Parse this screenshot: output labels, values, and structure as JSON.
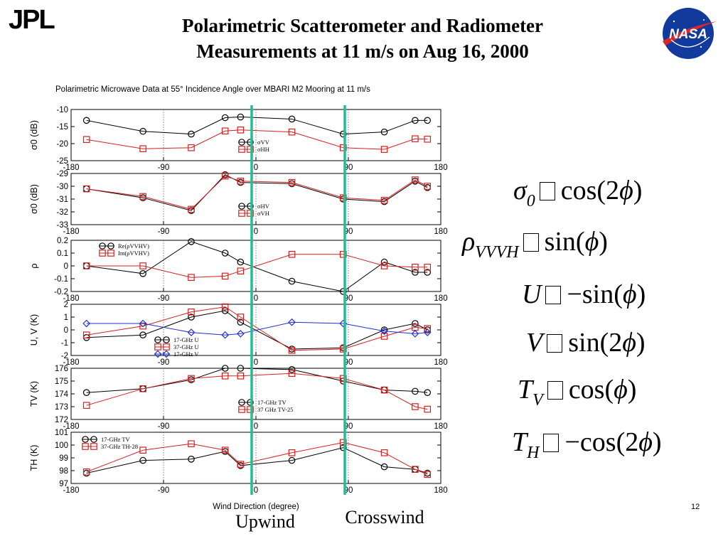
{
  "slide": {
    "title_line1": "Polarimetric Scatterometer and Radiometer",
    "title_line2": "Measurements at 11 m/s on Aug 16, 2000",
    "logo_left": "JPL",
    "logo_right": "NASA",
    "slide_number": "12",
    "annotation_upwind": "Upwind",
    "annotation_crosswind": "Crosswind"
  },
  "equations": [
    {
      "lhs": "σ",
      "sub": "0",
      "rhs": "cos(2",
      "var": "ϕ",
      "close": ")"
    },
    {
      "lhs": "ρ",
      "sub": "VVVH",
      "rhs": "sin(",
      "var": "ϕ",
      "close": ")"
    },
    {
      "lhs": "U",
      "sub": "",
      "rhs": "−sin(",
      "var": "ϕ",
      "close": ")"
    },
    {
      "lhs": "V",
      "sub": "",
      "rhs": "sin(2",
      "var": "ϕ",
      "close": ")"
    },
    {
      "lhs": "T",
      "sub": "V",
      "rhs": "cos(",
      "var": "ϕ",
      "close": ")"
    },
    {
      "lhs": "T",
      "sub": "H",
      "rhs": "−cos(2",
      "var": "ϕ",
      "close": ")"
    }
  ],
  "chart_data": {
    "type": "line",
    "title": "Polarimetric Microwave Data at 55° Incidence Angle over MBARI M2 Mooring at 11 m/s",
    "xlabel": "Wind Direction (degree)",
    "xlim": [
      -180,
      180
    ],
    "xticks": [
      -180,
      -90,
      0,
      90,
      180
    ],
    "x": [
      -165,
      -110,
      -63,
      -30,
      -15,
      35,
      85,
      125,
      155,
      167
    ],
    "vlines": [
      {
        "x": 0,
        "label": "Upwind"
      },
      {
        "x": 90,
        "label": "Crosswind"
      }
    ],
    "colors": {
      "black": "#000000",
      "red": "#d62020",
      "blue": "#2030d0",
      "marker_line": "#1fbf96"
    },
    "panels": [
      {
        "ylabel": "σ0 (dB)",
        "ylim": [
          -25,
          -10
        ],
        "yticks": [
          -25,
          -20,
          -15,
          -10
        ],
        "legend": [
          "σVV",
          "σHH"
        ],
        "series": [
          {
            "name": "σVV",
            "color": "#000000",
            "marker": "circle",
            "values": [
              -13.2,
              -16.4,
              -17.2,
              -12.4,
              -12.2,
              -12.8,
              -17.2,
              -16.6,
              -13.2,
              -13.2
            ]
          },
          {
            "name": "σHH",
            "color": "#d62020",
            "marker": "square",
            "values": [
              -18.8,
              -21.5,
              -21.2,
              -16.3,
              -16.0,
              -16.6,
              -21.2,
              -21.7,
              -18.6,
              -18.7
            ]
          }
        ]
      },
      {
        "ylabel": "σ0 (dB)",
        "ylim": [
          -33,
          -29
        ],
        "yticks": [
          -33,
          -32,
          -31,
          -30,
          -29
        ],
        "legend": [
          "σHV",
          "σVH"
        ],
        "series": [
          {
            "name": "σHV",
            "color": "#000000",
            "marker": "circle",
            "values": [
              -30.2,
              -30.9,
              -31.9,
              -29.1,
              -29.7,
              -29.8,
              -31.0,
              -31.2,
              -29.6,
              -30.1
            ]
          },
          {
            "name": "σVH",
            "color": "#d62020",
            "marker": "square",
            "values": [
              -30.2,
              -30.8,
              -31.8,
              -29.2,
              -29.6,
              -29.7,
              -30.9,
              -31.1,
              -29.5,
              -30.0
            ]
          }
        ]
      },
      {
        "ylabel": "ρ",
        "ylim": [
          -0.2,
          0.2
        ],
        "yticks": [
          -0.2,
          -0.1,
          0,
          0.1,
          0.2
        ],
        "legend": [
          "Re(ρVVHV)",
          "Im(ρVVHV)"
        ],
        "series": [
          {
            "name": "Re(ρVVHV)",
            "color": "#000000",
            "marker": "circle",
            "values": [
              0.0,
              -0.06,
              0.19,
              0.1,
              0.03,
              -0.12,
              -0.2,
              0.03,
              -0.05,
              -0.05
            ]
          },
          {
            "name": "Im(ρVVHV)",
            "color": "#d62020",
            "marker": "square",
            "values": [
              0.0,
              0.0,
              -0.09,
              -0.08,
              -0.04,
              0.09,
              0.09,
              0.0,
              -0.01,
              -0.01
            ]
          }
        ]
      },
      {
        "ylabel": "U, V (K)",
        "ylim": [
          -2,
          2
        ],
        "yticks": [
          -2,
          -1,
          0,
          1,
          2
        ],
        "legend": [
          "17-GHz U",
          "37-GHz U",
          "17-GHz V"
        ],
        "series": [
          {
            "name": "17-GHz U",
            "color": "#000000",
            "marker": "circle",
            "values": [
              -0.6,
              -0.4,
              1.0,
              1.5,
              0.6,
              -1.5,
              -1.4,
              0.0,
              0.5,
              0.0
            ]
          },
          {
            "name": "37-GHz U",
            "color": "#d62020",
            "marker": "square",
            "values": [
              -0.4,
              0.3,
              1.4,
              1.8,
              1.0,
              -1.6,
              -1.5,
              -0.5,
              0.2,
              0.1
            ]
          },
          {
            "name": "17-GHz V",
            "color": "#2030d0",
            "marker": "diamond",
            "values": [
              0.5,
              0.5,
              -0.2,
              -0.4,
              -0.3,
              0.6,
              0.5,
              -0.1,
              -0.3,
              -0.2
            ]
          }
        ]
      },
      {
        "ylabel": "TV (K)",
        "ylim": [
          172,
          176
        ],
        "yticks": [
          172,
          173,
          174,
          175,
          176
        ],
        "legend": [
          "17-GHz TV",
          "37 GHz TV-25"
        ],
        "series": [
          {
            "name": "17-GHz TV",
            "color": "#000000",
            "marker": "circle",
            "values": [
              174.1,
              174.4,
              175.1,
              176.0,
              176.0,
              175.9,
              175.0,
              174.3,
              174.2,
              174.1
            ]
          },
          {
            "name": "37 GHz TV-25",
            "color": "#d62020",
            "marker": "square",
            "values": [
              173.1,
              174.4,
              175.2,
              175.4,
              175.4,
              175.6,
              175.2,
              174.3,
              173.0,
              172.8
            ]
          }
        ]
      },
      {
        "ylabel": "TH (K)",
        "ylim": [
          97,
          101
        ],
        "yticks": [
          97,
          98,
          99,
          100,
          101
        ],
        "legend": [
          "17-GHz TV",
          "37-GHz TH-28"
        ],
        "series": [
          {
            "name": "17-GHz TV",
            "color": "#000000",
            "marker": "circle",
            "values": [
              97.8,
              98.8,
              98.9,
              99.5,
              98.4,
              98.8,
              99.8,
              98.3,
              98.1,
              97.8
            ]
          },
          {
            "name": "37-GHz TH-28",
            "color": "#d62020",
            "marker": "square",
            "values": [
              97.9,
              99.6,
              100.1,
              99.6,
              98.5,
              99.4,
              100.2,
              99.4,
              98.1,
              97.7
            ]
          }
        ]
      }
    ]
  }
}
